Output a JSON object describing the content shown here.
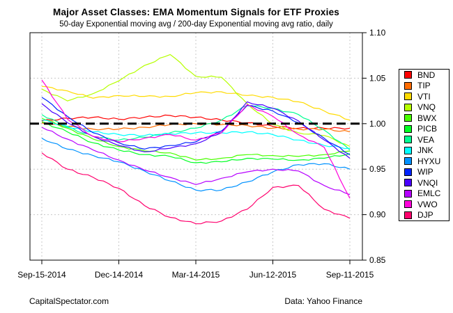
{
  "header": {
    "title": "Major Asset Classes: EMA Momentum Signals for ETF Proxies",
    "subtitle": "50-day Exponential moving avg / 200-day Exponential moving avg ratio, daily"
  },
  "footer": {
    "left": "CapitalSpectator.com",
    "right": "Data: Yahoo Finance"
  },
  "chart_data": {
    "type": "line",
    "title": "Major Asset Classes: EMA Momentum Signals for ETF Proxies",
    "subtitle": "50-day Exponential moving avg / 200-day Exponential moving avg ratio, daily",
    "xlabel": "",
    "ylabel": "",
    "ylim": [
      0.85,
      1.1
    ],
    "y_ticks": [
      1.1,
      1.05,
      1.0,
      0.95,
      0.9,
      0.85
    ],
    "y_tick_labels": [
      "1.10",
      "1.05",
      "1.00",
      "0.95",
      "0.90",
      "0.85"
    ],
    "x_tick_labels": [
      "Sep-15-2014",
      "Dec-14-2014",
      "Mar-14-2015",
      "Jun-12-2015",
      "Sep-11-2015"
    ],
    "grid": "dotted",
    "grid_color": "#c8c8c8",
    "reference_line_value": 1.0,
    "reference_line_style": "black heavy dashed",
    "legend_position": "right",
    "x": [
      "Sep-15-2014",
      "Oct-15-2014",
      "Nov-14-2014",
      "Dec-14-2014",
      "Jan-13-2015",
      "Feb-12-2015",
      "Mar-14-2015",
      "Apr-13-2015",
      "May-13-2015",
      "Jun-12-2015",
      "Jul-12-2015",
      "Aug-11-2015",
      "Sep-11-2015"
    ],
    "series": [
      {
        "name": "BND",
        "color": "#FF0000",
        "values": [
          1.003,
          1.006,
          1.007,
          1.005,
          1.007,
          1.009,
          1.007,
          1.004,
          1.001,
          0.997,
          0.995,
          0.995,
          0.995
        ]
      },
      {
        "name": "TIP",
        "color": "#FF6D00",
        "values": [
          1.001,
          0.997,
          0.994,
          0.994,
          0.996,
          0.999,
          1.0,
          0.999,
          0.998,
          0.995,
          0.994,
          0.994,
          0.991
        ]
      },
      {
        "name": "VTI",
        "color": "#FFDB00",
        "values": [
          1.041,
          1.036,
          1.028,
          1.031,
          1.03,
          1.03,
          1.034,
          1.035,
          1.031,
          1.029,
          1.024,
          1.014,
          1.004
        ]
      },
      {
        "name": "VNQ",
        "color": "#B6FF00",
        "values": [
          1.038,
          1.025,
          1.033,
          1.047,
          1.064,
          1.076,
          1.052,
          1.051,
          1.022,
          0.999,
          0.99,
          0.987,
          0.975
        ]
      },
      {
        "name": "BWX",
        "color": "#49FF00",
        "values": [
          1.006,
          0.995,
          0.983,
          0.975,
          0.97,
          0.968,
          0.96,
          0.962,
          0.966,
          0.965,
          0.964,
          0.966,
          0.97
        ]
      },
      {
        "name": "PICB",
        "color": "#00FF24",
        "values": [
          1.002,
          0.991,
          0.979,
          0.971,
          0.966,
          0.964,
          0.957,
          0.958,
          0.962,
          0.961,
          0.96,
          0.962,
          0.967
        ]
      },
      {
        "name": "VEA",
        "color": "#00FF92",
        "values": [
          1.01,
          0.996,
          0.986,
          0.982,
          0.985,
          0.99,
          0.995,
          1.004,
          1.02,
          1.017,
          1.01,
          0.993,
          0.971
        ]
      },
      {
        "name": "JNK",
        "color": "#00FFFF",
        "values": [
          1.004,
          0.997,
          0.991,
          0.988,
          0.987,
          0.989,
          0.99,
          0.99,
          0.991,
          0.988,
          0.982,
          0.976,
          0.973
        ]
      },
      {
        "name": "HYXU",
        "color": "#0092FF",
        "values": [
          0.984,
          0.972,
          0.965,
          0.958,
          0.948,
          0.937,
          0.927,
          0.927,
          0.936,
          0.947,
          0.955,
          0.956,
          0.95
        ]
      },
      {
        "name": "WIP",
        "color": "#0024FF",
        "values": [
          1.029,
          1.008,
          0.99,
          0.979,
          0.972,
          0.976,
          0.98,
          0.992,
          1.02,
          1.014,
          1.001,
          0.984,
          0.966
        ]
      },
      {
        "name": "VNQI",
        "color": "#4900FF",
        "values": [
          1.022,
          1.001,
          0.986,
          0.976,
          0.969,
          0.973,
          0.978,
          0.99,
          1.024,
          1.017,
          1.003,
          0.982,
          0.962
        ]
      },
      {
        "name": "EMLC",
        "color": "#B600FF",
        "values": [
          0.996,
          0.983,
          0.971,
          0.96,
          0.949,
          0.941,
          0.933,
          0.94,
          0.947,
          0.95,
          0.948,
          0.932,
          0.922
        ]
      },
      {
        "name": "VWO",
        "color": "#FF00DB",
        "values": [
          1.048,
          1.005,
          0.986,
          0.98,
          0.984,
          0.988,
          0.982,
          0.99,
          1.021,
          1.008,
          0.988,
          0.974,
          0.918
        ]
      },
      {
        "name": "DJP",
        "color": "#FF006D",
        "values": [
          0.968,
          0.95,
          0.941,
          0.929,
          0.91,
          0.897,
          0.89,
          0.893,
          0.906,
          0.93,
          0.932,
          0.906,
          0.896
        ]
      }
    ]
  }
}
